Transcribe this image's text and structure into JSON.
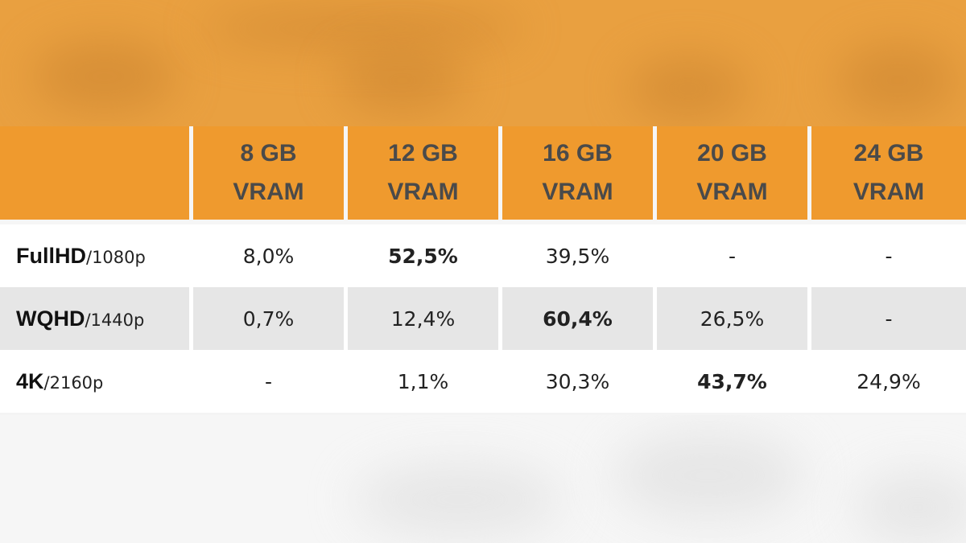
{
  "chart_data": {
    "type": "table",
    "columns": [
      {
        "line1": "8 GB",
        "line2": "VRAM"
      },
      {
        "line1": "12 GB",
        "line2": "VRAM"
      },
      {
        "line1": "16 GB",
        "line2": "VRAM"
      },
      {
        "line1": "20 GB",
        "line2": "VRAM"
      },
      {
        "line1": "24 GB",
        "line2": "VRAM"
      }
    ],
    "rows": [
      {
        "label_main": "FullHD",
        "label_sub": "/1080p",
        "values": [
          "8,0%",
          "52,5%",
          "39,5%",
          "-",
          "-"
        ],
        "highlight": 1
      },
      {
        "label_main": "WQHD",
        "label_sub": "/1440p",
        "values": [
          "0,7%",
          "12,4%",
          "60,4%",
          "26,5%",
          "-"
        ],
        "highlight": 2
      },
      {
        "label_main": "4K",
        "label_sub": "/2160p",
        "values": [
          "-",
          "1,1%",
          "30,3%",
          "43,7%",
          "24,9%"
        ],
        "highlight": 3
      }
    ]
  },
  "colors": {
    "header_bg": "#ef9a2e",
    "header_text": "#4a4a4a",
    "row_alt_bg": "#e6e6e6"
  }
}
